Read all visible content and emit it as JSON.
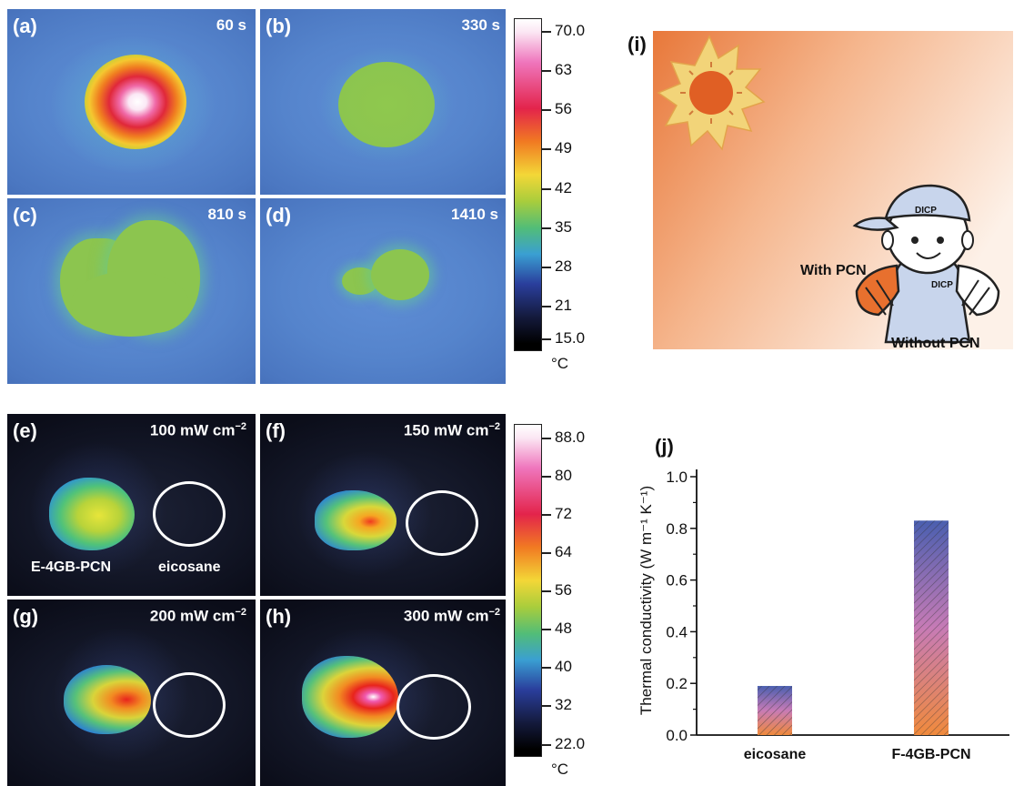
{
  "top_panels": [
    {
      "label": "(a)",
      "time": "60 s"
    },
    {
      "label": "(b)",
      "time": "330 s"
    },
    {
      "label": "(c)",
      "time": "810 s"
    },
    {
      "label": "(d)",
      "time": "1410 s"
    }
  ],
  "top_colorbar": {
    "ticks": [
      "70.0",
      "63",
      "56",
      "49",
      "42",
      "35",
      "28",
      "21",
      "15.0"
    ],
    "unit": "°C"
  },
  "bottom_panels": [
    {
      "label": "(e)",
      "power": "100 mW cm",
      "sup": "−2"
    },
    {
      "label": "(f)",
      "power": "150 mW cm",
      "sup": "−2"
    },
    {
      "label": "(g)",
      "power": "200 mW cm",
      "sup": "−2"
    },
    {
      "label": "(h)",
      "power": "300 mW cm",
      "sup": "−2"
    }
  ],
  "sample_labels": {
    "left": "E-4GB-PCN",
    "right": "eicosane"
  },
  "bottom_colorbar": {
    "ticks": [
      "88.0",
      "80",
      "72",
      "64",
      "56",
      "48",
      "40",
      "32",
      "22.0"
    ],
    "unit": "°C"
  },
  "illustration": {
    "label": "(i)",
    "cap_text": "DICP",
    "shirt_text": "DICP",
    "with_label": "With PCN",
    "without_label": "Without PCN",
    "colors": {
      "sky_start": "#e8783a",
      "sky_end": "#fdf1e8",
      "sun": "#e05f24",
      "rays": "#f2d479",
      "shirt": "#c8d5ec"
    }
  },
  "chart_data": {
    "type": "bar",
    "label": "(j)",
    "categories": [
      "eicosane",
      "F-4GB-PCN"
    ],
    "values": [
      0.19,
      0.83
    ],
    "title": "",
    "xlabel": "",
    "ylabel": "Thermal conductivity (W m⁻¹ K⁻¹)",
    "ylim": [
      0.0,
      1.0
    ],
    "yticks": [
      "0.0",
      "0.2",
      "0.4",
      "0.6",
      "0.8",
      "1.0"
    ],
    "colors": {
      "bottom": "#f08a3c",
      "middle": "#c77bb6",
      "top": "#4a5fb0"
    }
  }
}
